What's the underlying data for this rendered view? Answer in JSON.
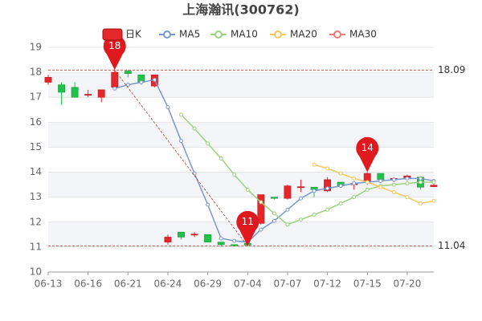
{
  "chart_data": {
    "type": "candlestick",
    "title": "上海瀚讯(300762)",
    "categories": [
      "06-13",
      null,
      null,
      "06-16",
      null,
      null,
      "06-21",
      null,
      null,
      "06-24",
      null,
      null,
      "06-29",
      null,
      null,
      "07-04",
      null,
      null,
      "07-07",
      null,
      null,
      "07-12",
      null,
      null,
      "07-15",
      null,
      null,
      "07-20",
      null,
      null
    ],
    "candle_name": "日K",
    "up_color": "#e5262b",
    "down_color": "#22c24a",
    "open": [
      17.6,
      17.5,
      17.4,
      17.08,
      17.0,
      17.4,
      18.05,
      17.9,
      17.45,
      11.2,
      11.6,
      11.48,
      11.5,
      11.2,
      11.1,
      11.15,
      11.95,
      13.0,
      12.95,
      13.38,
      13.4,
      13.25,
      13.6,
      13.5,
      13.6,
      13.95,
      13.7,
      13.75,
      13.8,
      13.42
    ],
    "close": [
      17.8,
      17.2,
      17.0,
      17.12,
      17.3,
      18.0,
      17.95,
      17.6,
      17.9,
      11.4,
      11.4,
      11.52,
      11.2,
      11.1,
      11.05,
      11.08,
      13.1,
      12.95,
      13.45,
      13.42,
      13.3,
      13.7,
      13.45,
      13.55,
      13.95,
      13.7,
      13.75,
      13.85,
      13.4,
      13.48
    ],
    "high": [
      17.9,
      17.6,
      17.6,
      17.3,
      17.3,
      18.09,
      18.1,
      17.9,
      17.9,
      11.5,
      11.6,
      11.6,
      11.5,
      11.2,
      11.1,
      11.2,
      13.1,
      13.0,
      13.5,
      13.7,
      13.4,
      13.8,
      13.6,
      13.6,
      14.0,
      13.95,
      13.8,
      13.9,
      13.8,
      13.7
    ],
    "low": [
      17.5,
      16.7,
      17.0,
      17.0,
      16.8,
      17.4,
      17.8,
      17.5,
      17.4,
      11.1,
      11.3,
      11.4,
      11.2,
      11.05,
      11.05,
      11.04,
      11.9,
      12.9,
      12.9,
      13.2,
      13.0,
      13.2,
      13.4,
      13.3,
      13.5,
      13.6,
      13.6,
      13.7,
      13.3,
      13.4
    ],
    "series": [
      {
        "name": "MA5",
        "color": "#7b96cf",
        "values": [
          null,
          null,
          null,
          null,
          null,
          17.35,
          17.5,
          17.6,
          17.7,
          16.6,
          15.25,
          13.95,
          12.7,
          11.35,
          11.25,
          11.2,
          11.7,
          12.05,
          12.5,
          12.95,
          13.25,
          13.35,
          13.45,
          13.55,
          13.6,
          13.65,
          13.7,
          13.75,
          13.75,
          13.65
        ]
      },
      {
        "name": "MA10",
        "color": "#9bd27a",
        "values": [
          null,
          null,
          null,
          null,
          null,
          null,
          null,
          null,
          null,
          null,
          16.3,
          15.75,
          15.15,
          14.55,
          13.9,
          13.3,
          12.8,
          12.35,
          11.9,
          12.1,
          12.3,
          12.5,
          12.75,
          13.0,
          13.3,
          13.45,
          13.5,
          13.55,
          13.6,
          13.6
        ]
      },
      {
        "name": "MA20",
        "color": "#f5c65a",
        "values": [
          null,
          null,
          null,
          null,
          null,
          null,
          null,
          null,
          null,
          null,
          null,
          null,
          null,
          null,
          null,
          null,
          null,
          null,
          null,
          null,
          14.3,
          14.15,
          13.95,
          13.75,
          13.6,
          13.4,
          13.2,
          13.0,
          12.75,
          12.85
        ]
      },
      {
        "name": "MA30",
        "color": "#f07878",
        "values": [
          null,
          null,
          null,
          null,
          null,
          null,
          null,
          null,
          null,
          null,
          null,
          null,
          null,
          null,
          null,
          null,
          null,
          null,
          null,
          null,
          null,
          null,
          null,
          null,
          null,
          null,
          null,
          null,
          null,
          null
        ]
      }
    ],
    "markers": [
      {
        "label": "18",
        "value": 18.09
      },
      {
        "label": "11",
        "value": 11.04
      },
      {
        "label": "14",
        "value": 14.0
      }
    ],
    "hlines": [
      18.09,
      11.04
    ],
    "ylim": [
      10,
      19
    ],
    "yticks": [
      10,
      11,
      12,
      13,
      14,
      15,
      16,
      17,
      18,
      19
    ],
    "grid": true
  }
}
